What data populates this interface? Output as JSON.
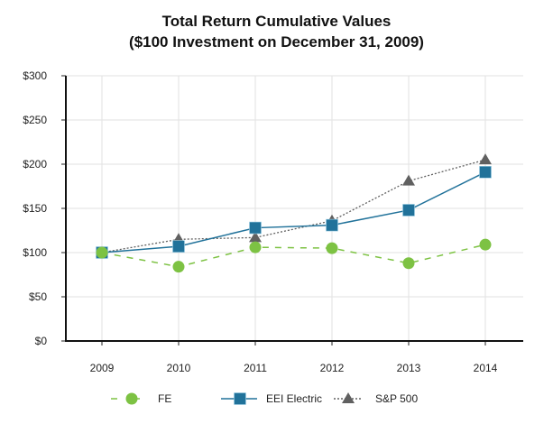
{
  "chart_data": {
    "type": "line",
    "title": "Total Return Cumulative Values",
    "subtitle": "($100 Investment on December 31, 2009)",
    "xlabel": "",
    "ylabel": "",
    "x": [
      "2009",
      "2010",
      "2011",
      "2012",
      "2013",
      "2014"
    ],
    "ylim": [
      0,
      300
    ],
    "yticks": [
      0,
      50,
      100,
      150,
      200,
      250,
      300
    ],
    "ytick_labels": [
      "$0",
      "$50",
      "$100",
      "$150",
      "$200",
      "$250",
      "$300"
    ],
    "grid": true,
    "legend_position": "bottom",
    "series": [
      {
        "name": "FE",
        "color": "#7dc243",
        "style": "dashed",
        "marker": "circle",
        "values": [
          100,
          84,
          106,
          105,
          88,
          109
        ]
      },
      {
        "name": "EEI Electric",
        "color": "#21729a",
        "style": "solid",
        "marker": "square",
        "values": [
          100,
          107,
          128,
          131,
          148,
          191
        ]
      },
      {
        "name": "S&P 500",
        "color": "#606060",
        "style": "dotted",
        "marker": "triangle",
        "values": [
          100,
          115,
          117,
          136,
          181,
          205
        ]
      }
    ]
  }
}
